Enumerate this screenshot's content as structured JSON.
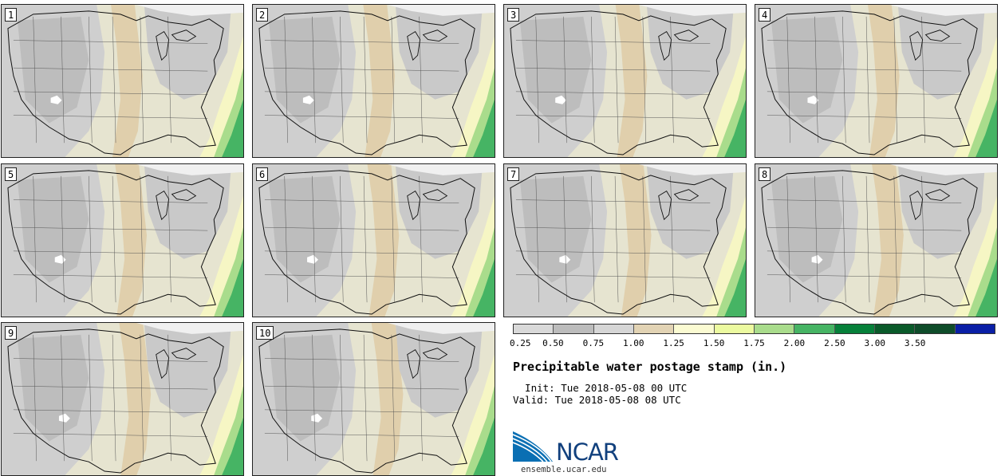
{
  "members": [
    {
      "label": "1"
    },
    {
      "label": "2"
    },
    {
      "label": "3"
    },
    {
      "label": "4"
    },
    {
      "label": "5"
    },
    {
      "label": "6"
    },
    {
      "label": "7"
    },
    {
      "label": "8"
    },
    {
      "label": "9"
    },
    {
      "label": "10"
    }
  ],
  "legend": {
    "colors": [
      "#d9d9d9",
      "#bcbcbc",
      "#d6d6d6",
      "#e2d3b4",
      "#fbfbd2",
      "#ecfaa0",
      "#a9dc8c",
      "#46b464",
      "#06803a",
      "#0a5a2a",
      "#0f4c2a",
      "#0a1fa6"
    ],
    "ticks": [
      "0.25",
      "0.50",
      "0.75",
      "1.00",
      "1.25",
      "1.50",
      "1.75",
      "2.00",
      "2.50",
      "3.00",
      "3.50"
    ]
  },
  "info": {
    "title": "Precipitable water postage stamp (in.)",
    "init": "  Init: Tue 2018-05-08 00 UTC",
    "valid": "Valid: Tue 2018-05-08 08 UTC"
  },
  "branding": {
    "logo_text": "NCAR",
    "site": "ensemble.ucar.edu",
    "logo_color": "#0a6fb3"
  }
}
